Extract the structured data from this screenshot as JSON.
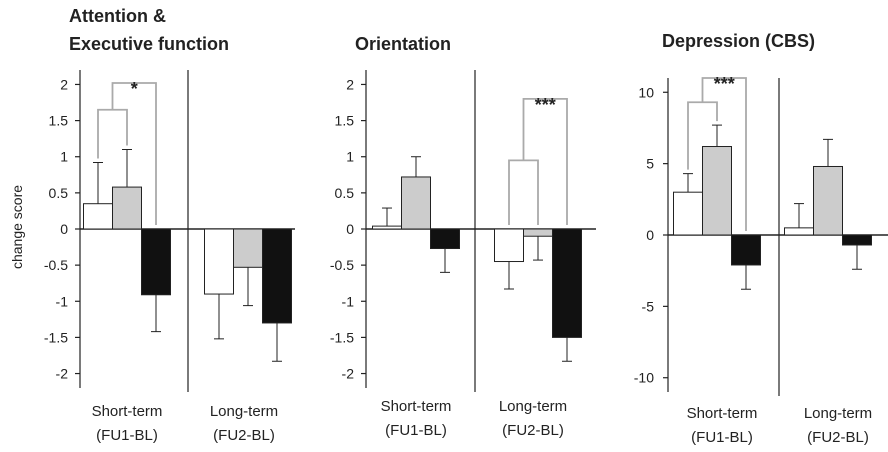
{
  "ylabel": "change score",
  "colors": {
    "white": "#ffffff",
    "grey": "#cccccc",
    "black": "#111111",
    "bracket": "#aaaaaa",
    "axis": "#222222"
  },
  "chart_data": [
    {
      "type": "bar",
      "title_lines": [
        "Attention &",
        "Executive function"
      ],
      "ylabel": "change score",
      "ylim": [
        -2.2,
        2.2
      ],
      "ticks": [
        2,
        1.5,
        1,
        0.5,
        0,
        -0.5,
        -1,
        -1.5,
        -2
      ],
      "tick_labels": [
        "2",
        "1.5",
        "1",
        "0.5",
        "0",
        "-0.5",
        "-1",
        "-1.5",
        "-2"
      ],
      "groups": [
        {
          "label_lines": [
            "Short-term",
            "(FU1-BL)"
          ]
        },
        {
          "label_lines": [
            "Long-term",
            "(FU2-BL)"
          ]
        }
      ],
      "series": [
        {
          "color": "white",
          "values": [
            0.35,
            -0.9
          ],
          "errors": [
            0.57,
            0.62
          ]
        },
        {
          "color": "grey",
          "values": [
            0.58,
            -0.53
          ],
          "errors": [
            0.52,
            0.53
          ]
        },
        {
          "color": "black",
          "values": [
            -0.91,
            -1.3
          ],
          "errors": [
            0.51,
            0.53
          ]
        }
      ],
      "significance": [
        {
          "label": "*",
          "group": 0,
          "left": [
            0,
            1
          ],
          "right": 2,
          "y_inner": 1.65,
          "y_outer": 2.02
        }
      ]
    },
    {
      "type": "bar",
      "title_lines": [
        "Orientation"
      ],
      "ylim": [
        -2.2,
        2.2
      ],
      "ticks": [
        2,
        1.5,
        1,
        0.5,
        0,
        -0.5,
        -1,
        -1.5,
        -2
      ],
      "tick_labels": [
        "2",
        "1.5",
        "1",
        "0.5",
        "0",
        "-0.5",
        "-1",
        "-1.5",
        "-2"
      ],
      "groups": [
        {
          "label_lines": [
            "Short-term",
            "(FU1-BL)"
          ]
        },
        {
          "label_lines": [
            "Long-term",
            "(FU2-BL)"
          ]
        }
      ],
      "series": [
        {
          "color": "white",
          "values": [
            0.04,
            -0.45
          ],
          "errors": [
            0.25,
            0.38
          ]
        },
        {
          "color": "grey",
          "values": [
            0.72,
            -0.1
          ],
          "errors": [
            0.28,
            0.33
          ]
        },
        {
          "color": "black",
          "values": [
            -0.27,
            -1.5
          ],
          "errors": [
            0.33,
            0.33
          ]
        }
      ],
      "significance": [
        {
          "label": "***",
          "group": 1,
          "left": [
            0,
            1
          ],
          "right": 2,
          "y_inner": 0.95,
          "y_outer": 1.8
        }
      ]
    },
    {
      "type": "bar",
      "title_lines": [
        "Depression (CBS)"
      ],
      "ylim": [
        -11,
        11
      ],
      "ticks": [
        10,
        5,
        0,
        -5,
        -10
      ],
      "tick_labels": [
        "10",
        "5",
        "0",
        "-5",
        "-10"
      ],
      "groups": [
        {
          "label_lines": [
            "Short-term",
            "(FU1-BL)"
          ]
        },
        {
          "label_lines": [
            "Long-term",
            "(FU2-BL)"
          ]
        }
      ],
      "series": [
        {
          "color": "white",
          "values": [
            3.0,
            0.5
          ],
          "errors": [
            1.3,
            1.7
          ]
        },
        {
          "color": "grey",
          "values": [
            6.2,
            4.8
          ],
          "errors": [
            1.5,
            1.9
          ]
        },
        {
          "color": "black",
          "values": [
            -2.1,
            -0.7
          ],
          "errors": [
            1.7,
            1.7
          ]
        }
      ],
      "significance": [
        {
          "label": "***",
          "group": 0,
          "left": [
            0,
            1
          ],
          "right": 2,
          "y_inner": 9.3,
          "y_outer": 11.0
        }
      ]
    }
  ]
}
